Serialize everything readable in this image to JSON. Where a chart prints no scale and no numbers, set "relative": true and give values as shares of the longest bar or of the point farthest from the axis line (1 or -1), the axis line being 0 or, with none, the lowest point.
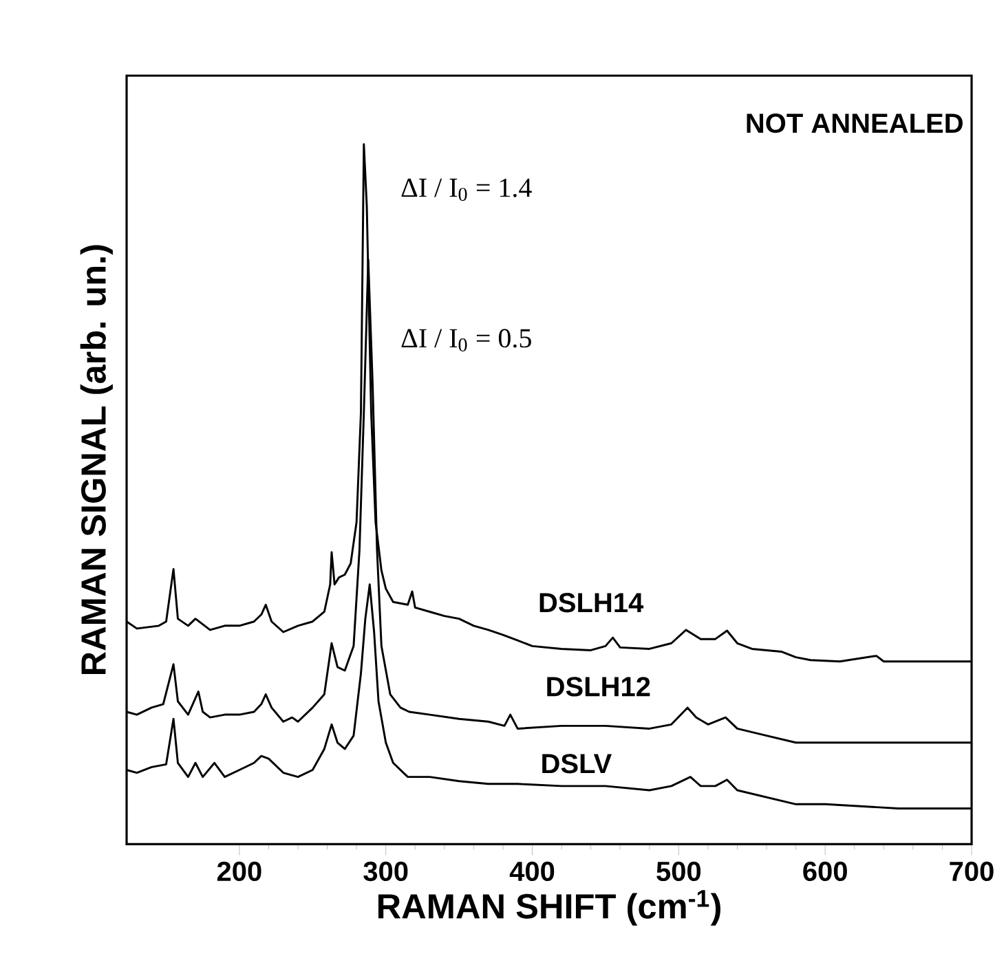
{
  "chart_data": {
    "type": "line",
    "relative": true,
    "xlabel": "RAMAN SHIFT  (cm$^{-1}$)",
    "ylabel": "RAMAN SIGNAL  (arb. un.)",
    "xlim": [
      123,
      700
    ],
    "xticks": [
      200,
      300,
      400,
      500,
      600,
      700
    ],
    "marker": "none",
    "line_style": "solid",
    "annotations": [
      "NOT ANNEALED",
      "ΔI / I$_{0}$ = 1.4",
      "ΔI / I$_{0}$ = 0.5"
    ],
    "series": [
      {
        "name": "DSLH14",
        "color": "#000000",
        "x": [
          123,
          130,
          145,
          150,
          155,
          158,
          165,
          170,
          180,
          190,
          200,
          210,
          215,
          218,
          222,
          230,
          240,
          250,
          258,
          262,
          263,
          265,
          268,
          272,
          276,
          280,
          283,
          285,
          287,
          290,
          293,
          297,
          300,
          305,
          315,
          318,
          320,
          330,
          340,
          350,
          360,
          370,
          380,
          390,
          400,
          420,
          440,
          450,
          455,
          460,
          480,
          495,
          505,
          515,
          525,
          533,
          540,
          550,
          570,
          580,
          590,
          610,
          635,
          640,
          660,
          700
        ],
        "values": [
          0.318,
          0.308,
          0.312,
          0.318,
          0.393,
          0.322,
          0.312,
          0.322,
          0.306,
          0.312,
          0.312,
          0.318,
          0.328,
          0.342,
          0.318,
          0.303,
          0.312,
          0.318,
          0.332,
          0.371,
          0.417,
          0.371,
          0.381,
          0.385,
          0.401,
          0.46,
          0.617,
          1,
          0.912,
          0.617,
          0.46,
          0.391,
          0.365,
          0.346,
          0.342,
          0.361,
          0.338,
          0.332,
          0.326,
          0.322,
          0.312,
          0.306,
          0.299,
          0.291,
          0.283,
          0.279,
          0.277,
          0.283,
          0.295,
          0.281,
          0.279,
          0.287,
          0.306,
          0.293,
          0.293,
          0.305,
          0.287,
          0.279,
          0.275,
          0.267,
          0.263,
          0.261,
          0.269,
          0.261,
          0.261,
          0.261
        ]
      },
      {
        "name": "DSLH12",
        "color": "#000000",
        "x": [
          123,
          130,
          140,
          148,
          155,
          158,
          165,
          172,
          175,
          180,
          190,
          200,
          210,
          215,
          218,
          222,
          230,
          236,
          240,
          250,
          258,
          263,
          267,
          272,
          278,
          282,
          285,
          288,
          291,
          294,
          297,
          303,
          310,
          316,
          330,
          350,
          370,
          381,
          385,
          390,
          420,
          450,
          480,
          495,
          506,
          512,
          520,
          532,
          540,
          560,
          580,
          600,
          650,
          700
        ],
        "values": [
          0.189,
          0.185,
          0.195,
          0.2,
          0.257,
          0.204,
          0.185,
          0.218,
          0.189,
          0.181,
          0.185,
          0.185,
          0.189,
          0.2,
          0.214,
          0.195,
          0.175,
          0.181,
          0.175,
          0.195,
          0.214,
          0.287,
          0.253,
          0.248,
          0.283,
          0.42,
          0.617,
          0.835,
          0.656,
          0.42,
          0.283,
          0.214,
          0.195,
          0.189,
          0.185,
          0.179,
          0.175,
          0.169,
          0.185,
          0.165,
          0.169,
          0.169,
          0.165,
          0.171,
          0.195,
          0.181,
          0.171,
          0.181,
          0.165,
          0.155,
          0.145,
          0.145,
          0.145,
          0.145
        ]
      },
      {
        "name": "DSLV",
        "color": "#000000",
        "x": [
          123,
          130,
          140,
          150,
          155,
          158,
          165,
          170,
          175,
          183,
          190,
          200,
          210,
          215,
          220,
          230,
          240,
          250,
          258,
          263,
          267,
          272,
          278,
          283,
          286,
          289,
          292,
          295,
          300,
          305,
          315,
          330,
          350,
          370,
          390,
          420,
          450,
          480,
          495,
          508,
          515,
          525,
          533,
          540,
          560,
          580,
          600,
          650,
          700
        ],
        "values": [
          0.106,
          0.102,
          0.11,
          0.114,
          0.179,
          0.116,
          0.096,
          0.116,
          0.096,
          0.116,
          0.096,
          0.106,
          0.116,
          0.126,
          0.122,
          0.102,
          0.096,
          0.106,
          0.136,
          0.171,
          0.145,
          0.136,
          0.155,
          0.244,
          0.322,
          0.371,
          0.303,
          0.204,
          0.145,
          0.116,
          0.096,
          0.096,
          0.09,
          0.086,
          0.086,
          0.083,
          0.083,
          0.077,
          0.083,
          0.096,
          0.083,
          0.083,
          0.092,
          0.077,
          0.067,
          0.057,
          0.057,
          0.051,
          0.051
        ]
      }
    ]
  }
}
